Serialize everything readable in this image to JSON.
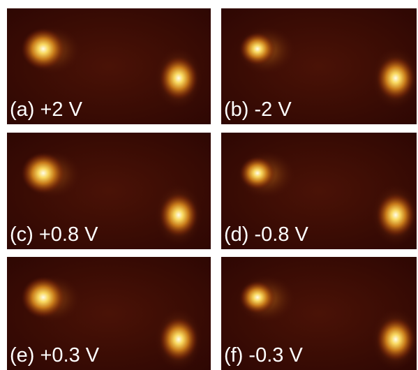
{
  "panels": [
    {
      "label": "(a) +2 V"
    },
    {
      "label": "(b) -2 V"
    },
    {
      "label": "(c) +0.8 V"
    },
    {
      "label": "(d) -0.8 V"
    },
    {
      "label": "(e) +0.3 V"
    },
    {
      "label": "(f) -0.3 V"
    }
  ]
}
